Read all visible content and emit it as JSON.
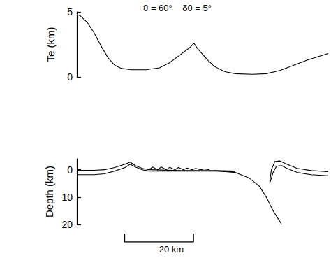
{
  "chart_data": [
    {
      "type": "line",
      "title": "θ = 60°    δθ = 5°",
      "ylabel": "Te (km)",
      "xlim": [
        0,
        73
      ],
      "ylim": [
        0,
        5
      ],
      "yticks": [
        0,
        5
      ],
      "grid": false,
      "tick_labels": "y",
      "series": [
        {
          "color": "#000000",
          "line_style": "solid",
          "x": [
            0,
            1,
            3,
            5,
            7,
            9,
            11,
            13,
            16,
            20,
            24,
            27,
            30,
            33,
            34,
            35,
            38,
            40,
            43,
            46,
            51,
            55,
            59,
            63,
            67,
            73
          ],
          "values": [
            4.8,
            4.7,
            4.2,
            3.4,
            2.4,
            1.5,
            0.9,
            0.65,
            0.55,
            0.55,
            0.7,
            1.1,
            1.7,
            2.3,
            2.6,
            2.2,
            1.3,
            0.8,
            0.4,
            0.25,
            0.2,
            0.25,
            0.5,
            0.9,
            1.3,
            1.8
          ]
        }
      ]
    },
    {
      "type": "line",
      "ylabel": "Depth (km)",
      "xlim": [
        0,
        73
      ],
      "ylim": [
        -4,
        20
      ],
      "yticks": [
        0,
        10,
        20
      ],
      "grid": false,
      "tick_labels": "y",
      "scale_bar": {
        "length": 20,
        "label": "20 km"
      },
      "series": [
        {
          "color": "#000000",
          "line_style": "solid",
          "x": [
            0,
            5,
            8,
            11,
            14,
            15.5,
            17,
            19,
            21,
            30,
            40,
            46
          ],
          "values": [
            0.2,
            0.2,
            0,
            -0.8,
            -2,
            -2.8,
            -1.5,
            -0.5,
            0,
            0.3,
            0.3,
            0.5
          ]
        },
        {
          "color": "#000000",
          "line_style": "solid",
          "x": [
            0,
            5,
            8,
            11,
            14,
            15.5,
            17,
            19,
            21,
            25,
            30,
            40,
            46
          ],
          "values": [
            1.8,
            1.8,
            1.5,
            0.5,
            -0.8,
            -2,
            -1,
            0,
            0.5,
            0.5,
            0.5,
            0.5,
            0.8
          ]
        },
        {
          "color": "#000000",
          "line_style": "solid",
          "x": [
            21,
            22,
            23.5,
            24.5,
            26,
            27,
            28.5,
            29.5,
            31,
            32,
            33.5,
            34.5,
            36,
            37,
            38.5
          ],
          "values": [
            0,
            -1,
            0,
            -1,
            0,
            -0.9,
            0,
            -0.8,
            0,
            -0.6,
            0,
            -0.5,
            0,
            -0.3,
            0
          ]
        },
        {
          "color": "#000000",
          "line_style": "solid",
          "x": [
            40,
            46,
            50,
            53,
            55,
            57,
            59.5
          ],
          "values": [
            0.3,
            1.0,
            3,
            6,
            10,
            15,
            20
          ]
        },
        {
          "color": "#000000",
          "line_style": "solid",
          "x": [
            56,
            56.5,
            57.5,
            59,
            61,
            64,
            68,
            73
          ],
          "values": [
            4.5,
            0,
            -3,
            -3.2,
            -2,
            -0.5,
            0.3,
            0.7
          ]
        },
        {
          "color": "#000000",
          "line_style": "solid",
          "x": [
            56,
            57,
            58,
            59.5,
            61,
            64,
            68,
            73
          ],
          "values": [
            5,
            1,
            -1.3,
            -1.5,
            -0.5,
            1,
            1.8,
            2.2
          ]
        }
      ]
    }
  ]
}
